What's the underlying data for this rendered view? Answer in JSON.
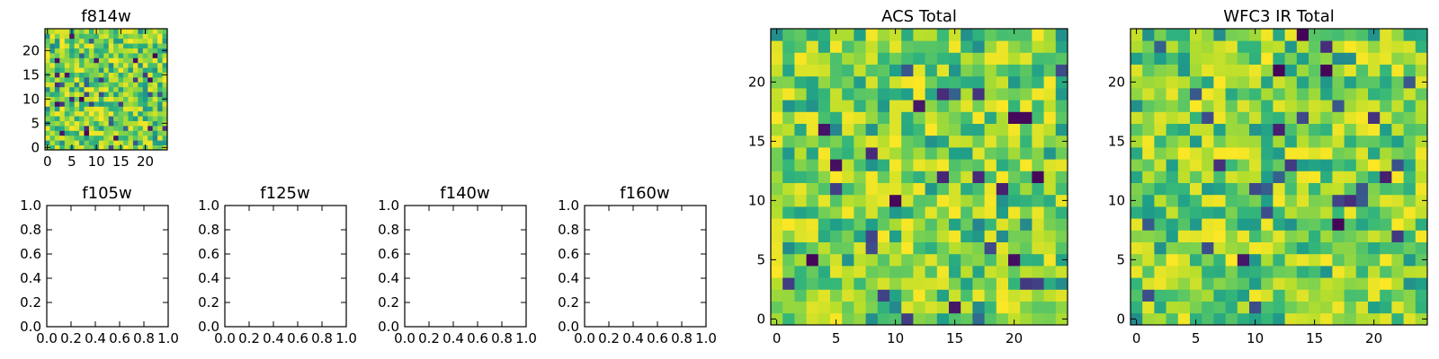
{
  "chart_data": [
    {
      "id": "f814w",
      "type": "heatmap",
      "title": "f814w",
      "grid_size": 25,
      "colormap": "viridis",
      "xlim": [
        -0.5,
        24.5
      ],
      "ylim": [
        -0.5,
        24.5
      ],
      "xticks": [
        "0",
        "5",
        "10",
        "15",
        "20"
      ],
      "yticks": [
        "0",
        "5",
        "10",
        "15",
        "20"
      ],
      "xlabel": "",
      "ylabel": "",
      "seed": 814
    },
    {
      "id": "f105w",
      "type": "heatmap",
      "title": "f105w",
      "empty": true,
      "xlim": [
        0,
        1
      ],
      "ylim": [
        0,
        1
      ],
      "xticks": [
        "0.0",
        "0.2",
        "0.4",
        "0.6",
        "0.8",
        "1.0"
      ],
      "yticks": [
        "0.0",
        "0.2",
        "0.4",
        "0.6",
        "0.8",
        "1.0"
      ]
    },
    {
      "id": "f125w",
      "type": "heatmap",
      "title": "f125w",
      "empty": true,
      "xlim": [
        0,
        1
      ],
      "ylim": [
        0,
        1
      ],
      "xticks": [
        "0.0",
        "0.2",
        "0.4",
        "0.6",
        "0.8",
        "1.0"
      ],
      "yticks": [
        "0.0",
        "0.2",
        "0.4",
        "0.6",
        "0.8",
        "1.0"
      ]
    },
    {
      "id": "f140w",
      "type": "heatmap",
      "title": "f140w",
      "empty": true,
      "xlim": [
        0,
        1
      ],
      "ylim": [
        0,
        1
      ],
      "xticks": [
        "0.0",
        "0.2",
        "0.4",
        "0.6",
        "0.8",
        "1.0"
      ],
      "yticks": [
        "0.0",
        "0.2",
        "0.4",
        "0.6",
        "0.8",
        "1.0"
      ]
    },
    {
      "id": "f160w",
      "type": "heatmap",
      "title": "f160w",
      "empty": true,
      "xlim": [
        0,
        1
      ],
      "ylim": [
        0,
        1
      ],
      "xticks": [
        "0.0",
        "0.2",
        "0.4",
        "0.6",
        "0.8",
        "1.0"
      ],
      "yticks": [
        "0.0",
        "0.2",
        "0.4",
        "0.6",
        "0.8",
        "1.0"
      ]
    },
    {
      "id": "acs-total",
      "type": "heatmap",
      "title": "ACS Total",
      "grid_size": 25,
      "colormap": "viridis",
      "xlim": [
        -0.5,
        24.5
      ],
      "ylim": [
        -0.5,
        24.5
      ],
      "xticks": [
        "0",
        "5",
        "10",
        "15",
        "20"
      ],
      "yticks": [
        "0",
        "5",
        "10",
        "15",
        "20"
      ],
      "xlabel": "",
      "ylabel": "",
      "seed": 1001
    },
    {
      "id": "wfc3-ir-total",
      "type": "heatmap",
      "title": "WFC3 IR Total",
      "grid_size": 25,
      "colormap": "viridis",
      "xlim": [
        -0.5,
        24.5
      ],
      "ylim": [
        -0.5,
        24.5
      ],
      "xticks": [
        "0",
        "5",
        "10",
        "15",
        "20"
      ],
      "yticks": [
        "0",
        "5",
        "10",
        "15",
        "20"
      ],
      "xlabel": "",
      "ylabel": "",
      "seed": 2002
    }
  ]
}
